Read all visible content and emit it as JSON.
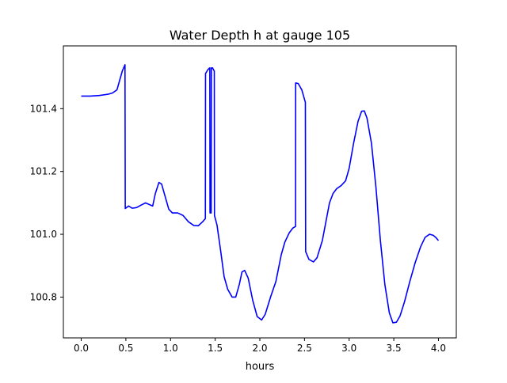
{
  "chart_data": {
    "type": "line",
    "title": "Water Depth h at gauge 105",
    "xlabel": "hours",
    "ylabel": "",
    "xlim": [
      -0.2,
      4.2
    ],
    "ylim": [
      100.67,
      101.6
    ],
    "xticks": [
      0.0,
      0.5,
      1.0,
      1.5,
      2.0,
      2.5,
      3.0,
      3.5,
      4.0
    ],
    "xtick_labels": [
      "0.0",
      "0.5",
      "1.0",
      "1.5",
      "2.0",
      "2.5",
      "3.0",
      "3.5",
      "4.0"
    ],
    "yticks": [
      100.8,
      101.0,
      101.2,
      101.4
    ],
    "ytick_labels": [
      "100.8",
      "101.0",
      "101.2",
      "101.4"
    ],
    "grid": false,
    "legend": "none",
    "series": [
      {
        "color": "#0000ff",
        "points": [
          [
            0.0,
            101.44
          ],
          [
            0.1,
            101.44
          ],
          [
            0.2,
            101.442
          ],
          [
            0.3,
            101.446
          ],
          [
            0.35,
            101.45
          ],
          [
            0.4,
            101.46
          ],
          [
            0.43,
            101.49
          ],
          [
            0.46,
            101.52
          ],
          [
            0.49,
            101.54
          ],
          [
            0.493,
            101.082
          ],
          [
            0.53,
            101.09
          ],
          [
            0.57,
            101.083
          ],
          [
            0.62,
            101.085
          ],
          [
            0.67,
            101.093
          ],
          [
            0.72,
            101.1
          ],
          [
            0.76,
            101.095
          ],
          [
            0.8,
            101.09
          ],
          [
            0.83,
            101.13
          ],
          [
            0.87,
            101.165
          ],
          [
            0.9,
            101.16
          ],
          [
            0.94,
            101.12
          ],
          [
            0.98,
            101.08
          ],
          [
            1.02,
            101.068
          ],
          [
            1.08,
            101.068
          ],
          [
            1.14,
            101.06
          ],
          [
            1.2,
            101.04
          ],
          [
            1.26,
            101.028
          ],
          [
            1.31,
            101.027
          ],
          [
            1.36,
            101.04
          ],
          [
            1.39,
            101.05
          ],
          [
            1.392,
            101.512
          ],
          [
            1.42,
            101.525
          ],
          [
            1.44,
            101.53
          ],
          [
            1.442,
            101.068
          ],
          [
            1.455,
            101.068
          ],
          [
            1.457,
            101.53
          ],
          [
            1.47,
            101.53
          ],
          [
            1.49,
            101.52
          ],
          [
            1.492,
            101.06
          ],
          [
            1.52,
            101.03
          ],
          [
            1.56,
            100.95
          ],
          [
            1.6,
            100.865
          ],
          [
            1.64,
            100.825
          ],
          [
            1.69,
            100.8
          ],
          [
            1.73,
            100.8
          ],
          [
            1.77,
            100.84
          ],
          [
            1.8,
            100.88
          ],
          [
            1.83,
            100.885
          ],
          [
            1.87,
            100.86
          ],
          [
            1.92,
            100.79
          ],
          [
            1.97,
            100.738
          ],
          [
            2.02,
            100.727
          ],
          [
            2.06,
            100.745
          ],
          [
            2.12,
            100.8
          ],
          [
            2.18,
            100.85
          ],
          [
            2.24,
            100.935
          ],
          [
            2.28,
            100.975
          ],
          [
            2.33,
            101.005
          ],
          [
            2.37,
            101.02
          ],
          [
            2.4,
            101.025
          ],
          [
            2.401,
            101.482
          ],
          [
            2.43,
            101.48
          ],
          [
            2.47,
            101.46
          ],
          [
            2.51,
            101.42
          ],
          [
            2.513,
            100.945
          ],
          [
            2.55,
            100.92
          ],
          [
            2.6,
            100.912
          ],
          [
            2.64,
            100.925
          ],
          [
            2.7,
            100.98
          ],
          [
            2.74,
            101.04
          ],
          [
            2.78,
            101.1
          ],
          [
            2.82,
            101.13
          ],
          [
            2.86,
            101.145
          ],
          [
            2.91,
            101.155
          ],
          [
            2.96,
            101.17
          ],
          [
            3.0,
            101.21
          ],
          [
            3.05,
            101.29
          ],
          [
            3.1,
            101.36
          ],
          [
            3.14,
            101.392
          ],
          [
            3.17,
            101.393
          ],
          [
            3.2,
            101.37
          ],
          [
            3.25,
            101.29
          ],
          [
            3.3,
            101.15
          ],
          [
            3.35,
            100.98
          ],
          [
            3.4,
            100.84
          ],
          [
            3.45,
            100.75
          ],
          [
            3.49,
            100.718
          ],
          [
            3.53,
            100.72
          ],
          [
            3.57,
            100.74
          ],
          [
            3.62,
            100.785
          ],
          [
            3.68,
            100.85
          ],
          [
            3.74,
            100.91
          ],
          [
            3.8,
            100.96
          ],
          [
            3.85,
            100.99
          ],
          [
            3.9,
            101.0
          ],
          [
            3.94,
            100.997
          ],
          [
            3.97,
            100.99
          ],
          [
            4.0,
            100.98
          ]
        ]
      }
    ]
  }
}
